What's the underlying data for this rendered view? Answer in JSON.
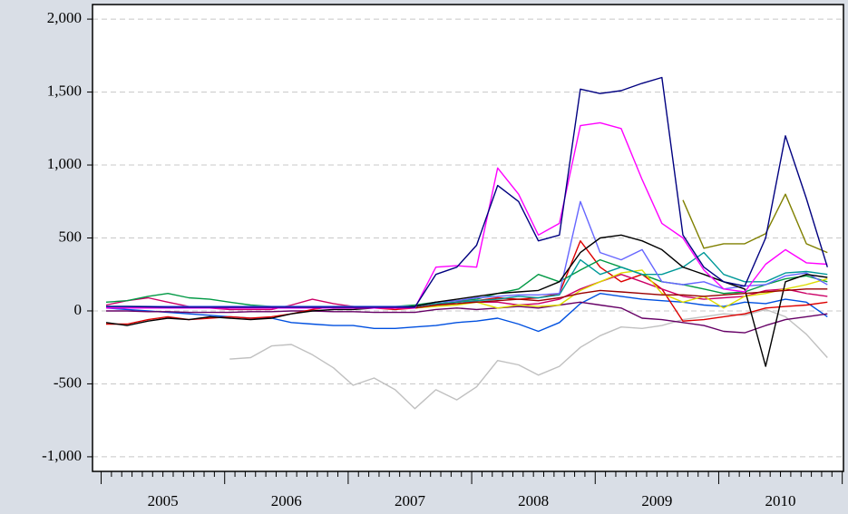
{
  "chart_data": {
    "type": "line",
    "x": [
      2004.54,
      2004.71,
      2004.88,
      2005.04,
      2005.21,
      2005.38,
      2005.54,
      2005.71,
      2005.88,
      2006.04,
      2006.21,
      2006.38,
      2006.54,
      2006.71,
      2006.88,
      2007.04,
      2007.21,
      2007.38,
      2007.54,
      2007.71,
      2007.88,
      2008.04,
      2008.21,
      2008.38,
      2008.54,
      2008.71,
      2008.88,
      2009.04,
      2009.21,
      2009.38,
      2009.54,
      2009.71,
      2009.88,
      2010.04,
      2010.21,
      2010.38
    ],
    "xlim": [
      2004.43,
      2010.51
    ],
    "xticks": [
      2005,
      2006,
      2007,
      2008,
      2009,
      2010
    ],
    "ylim": [
      -1100,
      2100
    ],
    "yticks": [
      {
        "value": 2000,
        "label": "2,000"
      },
      {
        "value": 1500,
        "label": "1,500"
      },
      {
        "value": 1000,
        "label": "1,000"
      },
      500,
      0,
      -500,
      {
        "value": -1000,
        "label": "-1,000"
      }
    ],
    "grid": true,
    "series": [
      {
        "color": "#c0c0c0",
        "values": [
          null,
          null,
          null,
          null,
          null,
          null,
          -330,
          -320,
          -240,
          -230,
          -300,
          -390,
          -510,
          -460,
          -540,
          -670,
          -540,
          -610,
          -520,
          -340,
          -370,
          -440,
          -380,
          -250,
          -170,
          -110,
          -120,
          -100,
          -60,
          -40,
          -20,
          -30,
          10,
          -40,
          -160,
          -320
        ]
      },
      {
        "color": "#0050e0",
        "values": [
          20,
          10,
          0,
          -10,
          -20,
          -30,
          -40,
          -50,
          -50,
          -80,
          -90,
          -100,
          -100,
          -120,
          -120,
          -110,
          -100,
          -80,
          -70,
          -50,
          -90,
          -140,
          -80,
          50,
          120,
          100,
          80,
          70,
          60,
          40,
          30,
          60,
          50,
          80,
          60,
          -40
        ]
      },
      {
        "color": "#660066",
        "values": [
          0,
          0,
          -5,
          -5,
          -10,
          -10,
          -10,
          -5,
          -5,
          0,
          0,
          -5,
          -5,
          -10,
          -10,
          -10,
          10,
          20,
          10,
          20,
          30,
          20,
          40,
          60,
          40,
          20,
          -50,
          -60,
          -80,
          -100,
          -140,
          -150,
          -100,
          -60,
          -40,
          -20
        ]
      },
      {
        "color": "#dd0000",
        "values": [
          -90,
          -90,
          -60,
          -40,
          -60,
          -50,
          -40,
          -50,
          -40,
          -20,
          10,
          30,
          30,
          20,
          10,
          20,
          40,
          60,
          70,
          90,
          80,
          90,
          120,
          480,
          300,
          200,
          250,
          150,
          -70,
          -60,
          -40,
          -20,
          20,
          30,
          40,
          60
        ]
      },
      {
        "color": "#cc0066",
        "values": [
          40,
          70,
          90,
          60,
          30,
          20,
          10,
          10,
          10,
          40,
          80,
          50,
          30,
          20,
          20,
          30,
          60,
          70,
          60,
          60,
          40,
          50,
          80,
          150,
          200,
          250,
          200,
          150,
          100,
          80,
          90,
          100,
          140,
          150,
          120,
          100
        ]
      },
      {
        "color": "#009944",
        "values": [
          60,
          70,
          100,
          120,
          90,
          80,
          60,
          40,
          30,
          30,
          30,
          30,
          30,
          30,
          30,
          40,
          60,
          70,
          80,
          120,
          150,
          250,
          200,
          280,
          350,
          300,
          250,
          200,
          180,
          150,
          120,
          130,
          180,
          220,
          240,
          200
        ]
      },
      {
        "color": "#dddd00",
        "values": [
          20,
          20,
          20,
          20,
          20,
          20,
          20,
          20,
          20,
          20,
          20,
          20,
          20,
          20,
          20,
          20,
          30,
          40,
          60,
          20,
          40,
          30,
          40,
          140,
          200,
          260,
          280,
          120,
          60,
          100,
          20,
          100,
          120,
          150,
          180,
          220
        ]
      },
      {
        "color": "#009999",
        "values": [
          30,
          30,
          30,
          30,
          30,
          30,
          30,
          30,
          30,
          30,
          30,
          30,
          30,
          30,
          30,
          30,
          50,
          60,
          70,
          80,
          100,
          90,
          110,
          350,
          250,
          300,
          250,
          250,
          300,
          400,
          250,
          200,
          200,
          260,
          270,
          250
        ]
      },
      {
        "color": "#6666ff",
        "values": [
          30,
          30,
          30,
          30,
          30,
          30,
          30,
          30,
          30,
          30,
          30,
          30,
          30,
          30,
          30,
          30,
          60,
          70,
          90,
          100,
          110,
          110,
          120,
          750,
          400,
          350,
          420,
          200,
          180,
          200,
          150,
          170,
          180,
          240,
          260,
          180
        ]
      },
      {
        "color": "#000000",
        "values": [
          -80,
          -100,
          -70,
          -50,
          -60,
          -40,
          -50,
          -60,
          -50,
          -20,
          0,
          10,
          10,
          20,
          20,
          30,
          60,
          80,
          100,
          120,
          130,
          140,
          200,
          400,
          500,
          520,
          480,
          420,
          300,
          250,
          200,
          150,
          -380,
          200,
          250,
          230
        ]
      },
      {
        "color": "#808000",
        "values": [
          null,
          null,
          null,
          null,
          null,
          null,
          null,
          null,
          null,
          null,
          null,
          null,
          null,
          null,
          null,
          null,
          null,
          null,
          null,
          null,
          null,
          null,
          null,
          null,
          null,
          null,
          null,
          null,
          760,
          430,
          460,
          460,
          530,
          800,
          460,
          400
        ]
      },
      {
        "color": "#990000",
        "values": [
          20,
          20,
          20,
          20,
          20,
          20,
          20,
          20,
          20,
          20,
          20,
          20,
          20,
          20,
          20,
          20,
          40,
          50,
          60,
          70,
          80,
          70,
          90,
          120,
          140,
          130,
          120,
          110,
          110,
          100,
          110,
          120,
          130,
          140,
          150,
          150
        ]
      },
      {
        "color": "#ff00ff",
        "values": [
          20,
          20,
          20,
          20,
          20,
          20,
          20,
          20,
          20,
          20,
          20,
          20,
          20,
          20,
          20,
          20,
          300,
          310,
          300,
          980,
          800,
          520,
          600,
          1270,
          1290,
          1250,
          900,
          600,
          500,
          280,
          150,
          130,
          320,
          420,
          330,
          320
        ]
      },
      {
        "color": "#000080",
        "values": [
          30,
          30,
          28,
          25,
          25,
          25,
          25,
          25,
          25,
          25,
          25,
          25,
          25,
          25,
          25,
          25,
          250,
          300,
          450,
          860,
          750,
          480,
          520,
          1520,
          1490,
          1510,
          1560,
          1600,
          520,
          300,
          200,
          170,
          500,
          1200,
          770,
          300
        ]
      }
    ]
  }
}
